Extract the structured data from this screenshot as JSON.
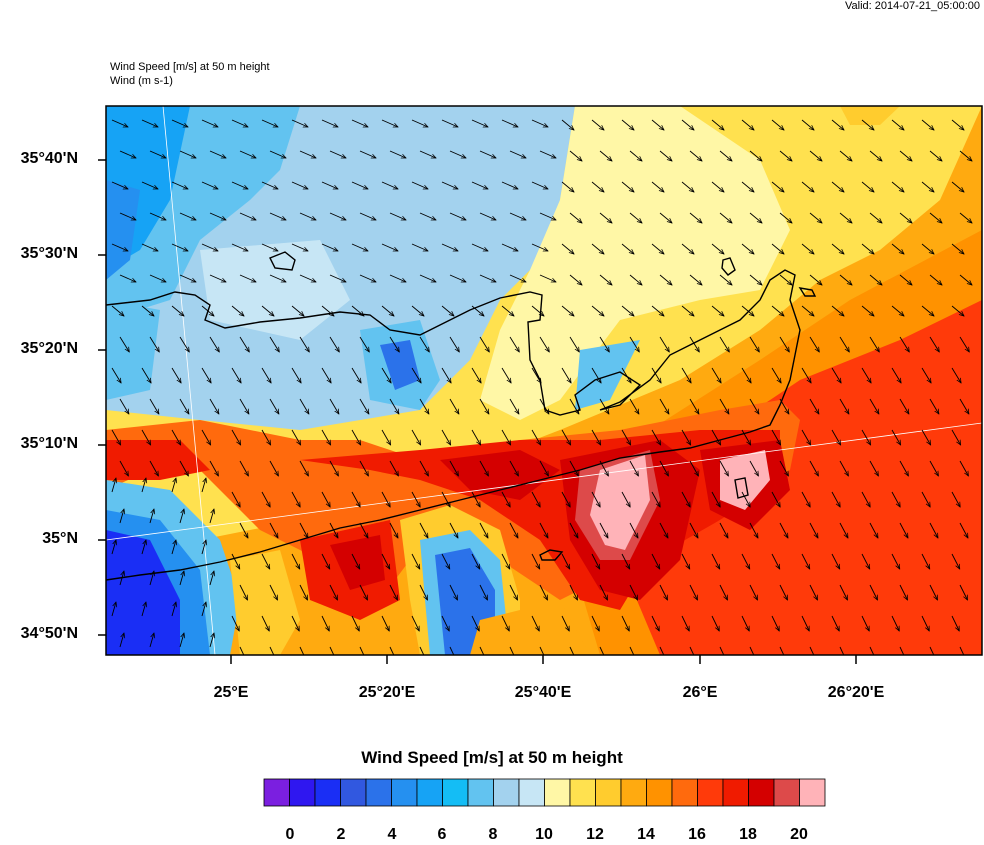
{
  "header": {
    "valid_time": "Valid: 2014-07-21_05:00:00",
    "title_line1": "Wind Speed [m/s] at 50 m height",
    "title_line2": "Wind   (m s-1)"
  },
  "map": {
    "lat_labels": [
      "35°40'N",
      "35°30'N",
      "35°20'N",
      "35°10'N",
      "35°N",
      "34°50'N"
    ],
    "lon_labels": [
      "25°E",
      "25°20'E",
      "25°40'E",
      "26°E",
      "26°20'E"
    ],
    "lat_values": [
      35.6667,
      35.5,
      35.3333,
      35.1667,
      35.0,
      34.8333
    ],
    "lon_values": [
      25.0,
      25.3333,
      25.6667,
      26.0,
      26.3333
    ],
    "wind_direction": "north-northwest"
  },
  "colorbar": {
    "title": "Wind Speed [m/s] at 50 m height",
    "tick_labels": [
      "0",
      "2",
      "4",
      "6",
      "8",
      "10",
      "12",
      "14",
      "16",
      "18",
      "20"
    ],
    "colors": [
      "#7b1fe0",
      "#2f17f0",
      "#1a2ef5",
      "#3158e0",
      "#2b72ea",
      "#2590f0",
      "#16a3f5",
      "#14bdf5",
      "#62c3f0",
      "#a3d2ee",
      "#c7e6f5",
      "#fff7a6",
      "#ffe14f",
      "#ffcc2e",
      "#ffaa10",
      "#ff9200",
      "#ff6a0d",
      "#ff3a0a",
      "#f01b00",
      "#d40000",
      "#dd4a4a",
      "#ffb3b8"
    ]
  }
}
